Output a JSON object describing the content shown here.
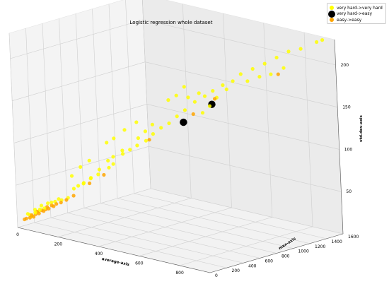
{
  "chart_data": {
    "type": "scatter",
    "projection": "3d",
    "title": "Logistic regression whole dataset",
    "xlabel": "average-axis",
    "ylabel": "max-axis",
    "zlabel": "std.dev-axis",
    "xlim": [
      0,
      950
    ],
    "ylim": [
      0,
      1600
    ],
    "zlim": [
      0,
      230
    ],
    "xticks": [
      0,
      200,
      400,
      600,
      800
    ],
    "yticks": [
      0,
      200,
      400,
      600,
      800,
      1000,
      1200,
      1400,
      1600
    ],
    "zticks": [
      50,
      100,
      150,
      200
    ],
    "grid": true,
    "legend_position": "top-right",
    "series": [
      {
        "name": "very hard->very hard",
        "color": "#ffff00",
        "points": [
          [
            20,
            80,
            15
          ],
          [
            40,
            120,
            20
          ],
          [
            60,
            150,
            25
          ],
          [
            80,
            180,
            28
          ],
          [
            100,
            220,
            30
          ],
          [
            120,
            250,
            32
          ],
          [
            140,
            280,
            35
          ],
          [
            30,
            100,
            12
          ],
          [
            50,
            140,
            18
          ],
          [
            70,
            160,
            22
          ],
          [
            150,
            330,
            45
          ],
          [
            180,
            380,
            52
          ],
          [
            200,
            420,
            58
          ],
          [
            220,
            460,
            62
          ],
          [
            250,
            520,
            70
          ],
          [
            260,
            550,
            74
          ],
          [
            240,
            600,
            80
          ],
          [
            280,
            620,
            85
          ],
          [
            300,
            660,
            90
          ],
          [
            320,
            700,
            95
          ],
          [
            340,
            760,
            100
          ],
          [
            360,
            800,
            108
          ],
          [
            380,
            850,
            115
          ],
          [
            400,
            900,
            120
          ],
          [
            420,
            950,
            128
          ],
          [
            440,
            1000,
            135
          ],
          [
            470,
            1050,
            145
          ],
          [
            500,
            1100,
            152
          ],
          [
            520,
            1150,
            158
          ],
          [
            550,
            1200,
            165
          ],
          [
            580,
            1250,
            170
          ],
          [
            600,
            1300,
            178
          ],
          [
            640,
            1350,
            185
          ],
          [
            680,
            1400,
            192
          ],
          [
            720,
            1450,
            200
          ],
          [
            760,
            1500,
            208
          ],
          [
            800,
            1550,
            212
          ],
          [
            860,
            1600,
            222
          ],
          [
            880,
            1620,
            225
          ],
          [
            450,
            1020,
            150
          ],
          [
            480,
            1080,
            155
          ],
          [
            350,
            820,
            118
          ],
          [
            330,
            780,
            110
          ],
          [
            310,
            740,
            102
          ],
          [
            270,
            640,
            88
          ],
          [
            230,
            560,
            76
          ],
          [
            210,
            500,
            66
          ],
          [
            190,
            440,
            56
          ],
          [
            170,
            400,
            50
          ],
          [
            160,
            360,
            48
          ],
          [
            110,
            240,
            33
          ],
          [
            90,
            200,
            29
          ],
          [
            60,
            130,
            21
          ],
          [
            45,
            110,
            17
          ],
          [
            25,
            90,
            14
          ],
          [
            700,
            1420,
            180
          ],
          [
            740,
            1480,
            188
          ],
          [
            660,
            1380,
            176
          ],
          [
            620,
            1330,
            170
          ],
          [
            560,
            1220,
            160
          ],
          [
            530,
            1170,
            150
          ],
          [
            510,
            1130,
            140
          ],
          [
            490,
            1090,
            132
          ],
          [
            400,
            1000,
            150
          ],
          [
            420,
            1050,
            160
          ],
          [
            380,
            950,
            145
          ],
          [
            300,
            750,
            120
          ],
          [
            260,
            700,
            110
          ],
          [
            230,
            640,
            100
          ],
          [
            210,
            600,
            95
          ],
          [
            170,
            480,
            75
          ],
          [
            150,
            420,
            68
          ],
          [
            130,
            360,
            58
          ]
        ]
      },
      {
        "name": "very hard->easy",
        "color": "#000000",
        "points": [
          [
            500,
            1180,
            140
          ],
          [
            430,
            1000,
            120
          ]
        ]
      },
      {
        "name": "easy->easy",
        "color": "#ffa500",
        "points": [
          [
            20,
            60,
            10
          ],
          [
            35,
            90,
            14
          ],
          [
            50,
            120,
            18
          ],
          [
            65,
            140,
            20
          ],
          [
            80,
            170,
            24
          ],
          [
            95,
            190,
            26
          ],
          [
            110,
            210,
            28
          ],
          [
            125,
            230,
            30
          ],
          [
            40,
            100,
            12
          ],
          [
            55,
            130,
            16
          ],
          [
            70,
            150,
            19
          ],
          [
            85,
            175,
            22
          ],
          [
            100,
            200,
            25
          ],
          [
            30,
            80,
            11
          ],
          [
            15,
            50,
            9
          ],
          [
            140,
            260,
            33
          ],
          [
            160,
            300,
            38
          ],
          [
            200,
            400,
            52
          ],
          [
            240,
            480,
            62
          ],
          [
            340,
            800,
            100
          ],
          [
            460,
            1050,
            130
          ],
          [
            520,
            1170,
            148
          ],
          [
            720,
            1460,
            180
          ],
          [
            45,
            115,
            15
          ],
          [
            75,
            165,
            21
          ]
        ]
      }
    ]
  }
}
